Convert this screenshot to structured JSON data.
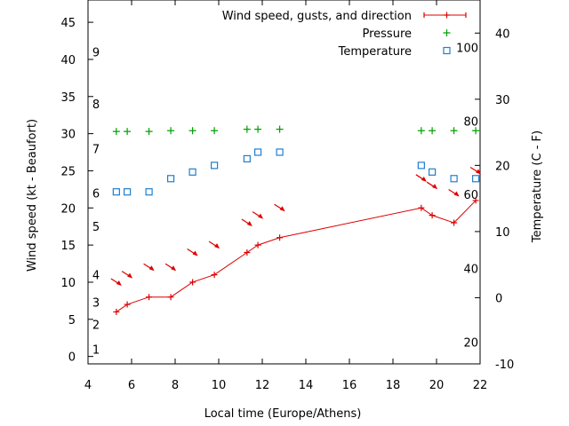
{
  "chart_data": {
    "type": "line",
    "xlabel": "Local time (Europe/Athens)",
    "ylabel_left": "Wind speed (kt - Beaufort)",
    "ylabel_right": "Temperature (C - F)",
    "x_ticks": [
      "4",
      "6",
      "8",
      "10",
      "12",
      "14",
      "16",
      "18",
      "20",
      "22"
    ],
    "xlim": [
      4,
      22
    ],
    "ylim_left": [
      -1,
      48
    ],
    "left_ticks": [
      "0",
      "5",
      "10",
      "15",
      "20",
      "25",
      "30",
      "35",
      "40",
      "45"
    ],
    "ylim_right": [
      -10,
      45
    ],
    "right_ticks": [
      "-10",
      "0",
      "10",
      "20",
      "30",
      "40"
    ],
    "beaufort_labels": [
      {
        "text": "1",
        "kt": 1
      },
      {
        "text": "2",
        "kt": 4.3
      },
      {
        "text": "3",
        "kt": 7.3
      },
      {
        "text": "4",
        "kt": 11
      },
      {
        "text": "5",
        "kt": 17.5
      },
      {
        "text": "6",
        "kt": 22
      },
      {
        "text": "7",
        "kt": 28
      },
      {
        "text": "8",
        "kt": 34
      },
      {
        "text": "9",
        "kt": 41
      }
    ],
    "fahrenheit_labels": [
      {
        "text": "20",
        "c": -6.7
      },
      {
        "text": "40",
        "c": 4.4
      },
      {
        "text": "60",
        "c": 15.6
      },
      {
        "text": "80",
        "c": 26.7
      },
      {
        "text": "100",
        "c": 37.8
      }
    ],
    "legend_position": "top-right",
    "series": [
      {
        "name": "Wind speed, gusts, and direction",
        "color": "#dd0000",
        "x": [
          5.3,
          5.8,
          6.8,
          7.8,
          8.8,
          9.8,
          11.3,
          11.8,
          12.8,
          19.3,
          19.8,
          20.8,
          21.8
        ],
        "y": [
          6,
          7,
          8,
          8,
          10,
          11,
          14,
          15,
          16,
          20,
          19,
          18,
          21
        ],
        "arrows": [
          {
            "x": 5.3,
            "kt": 10
          },
          {
            "x": 5.8,
            "kt": 11
          },
          {
            "x": 6.8,
            "kt": 12
          },
          {
            "x": 7.8,
            "kt": 12
          },
          {
            "x": 8.8,
            "kt": 14
          },
          {
            "x": 9.8,
            "kt": 15
          },
          {
            "x": 11.3,
            "kt": 18
          },
          {
            "x": 11.8,
            "kt": 19
          },
          {
            "x": 12.8,
            "kt": 20
          },
          {
            "x": 19.3,
            "kt": 24
          },
          {
            "x": 19.8,
            "kt": 23
          },
          {
            "x": 20.8,
            "kt": 22
          },
          {
            "x": 21.8,
            "kt": 25
          }
        ]
      },
      {
        "name": "Pressure",
        "color": "#00a000",
        "x": [
          5.3,
          5.8,
          6.8,
          7.8,
          8.8,
          9.8,
          11.3,
          11.8,
          12.8,
          19.3,
          19.8,
          20.8,
          21.8
        ],
        "y": [
          30.3,
          30.3,
          30.3,
          30.4,
          30.4,
          30.4,
          30.6,
          30.6,
          30.6,
          30.4,
          30.4,
          30.4,
          30.4
        ]
      },
      {
        "name": "Temperature",
        "color": "#1e7fd0",
        "x": [
          5.3,
          5.8,
          6.8,
          7.8,
          8.8,
          9.8,
          11.3,
          11.8,
          12.8,
          19.3,
          19.8,
          20.8,
          21.8
        ],
        "y": [
          16,
          16,
          16,
          18,
          19,
          20,
          21,
          22,
          22,
          20,
          19,
          18,
          18
        ]
      }
    ]
  }
}
